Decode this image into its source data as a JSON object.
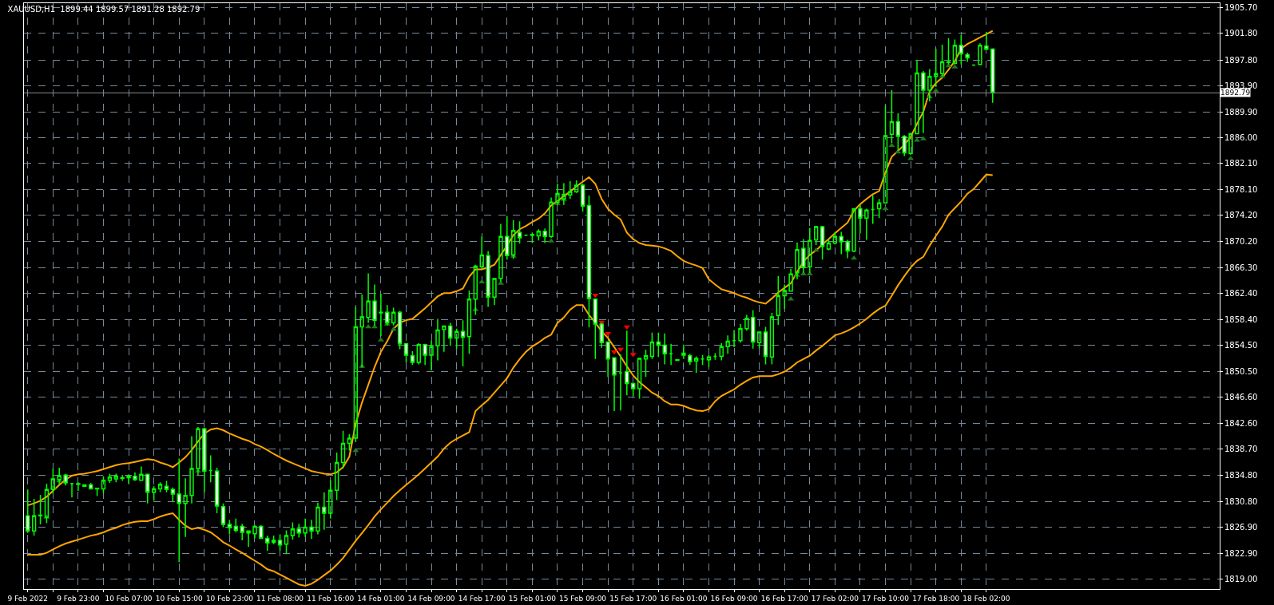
{
  "chart_data": {
    "type": "candlestick",
    "title": "XAUUSD,H1  1899.44 1899.57 1891.28 1892.79",
    "categories": [
      "9 Feb 2022",
      null,
      null,
      null,
      null,
      null,
      null,
      null,
      "9 Feb 23:00",
      null,
      null,
      null,
      null,
      null,
      null,
      null,
      "10 Feb 07:00",
      null,
      null,
      null,
      null,
      null,
      null,
      null,
      "10 Feb 15:00",
      null,
      null,
      null,
      null,
      null,
      null,
      null,
      "10 Feb 23:00",
      null,
      null,
      null,
      null,
      null,
      null,
      null,
      "11 Feb 08:00",
      null,
      null,
      null,
      null,
      null,
      null,
      null,
      "11 Feb 16:00",
      null,
      null,
      null,
      null,
      null,
      null,
      null,
      "14 Feb 01:00",
      null,
      null,
      null,
      null,
      null,
      null,
      null,
      "14 Feb 09:00",
      null,
      null,
      null,
      null,
      null,
      null,
      null,
      "14 Feb 17:00",
      null,
      null,
      null,
      null,
      null,
      null,
      null,
      "15 Feb 01:00",
      null,
      null,
      null,
      null,
      null,
      null,
      null,
      "15 Feb 09:00",
      null,
      null,
      null,
      null,
      null,
      null,
      null,
      "15 Feb 17:00",
      null,
      null,
      null,
      null,
      null,
      null,
      null,
      "16 Feb 01:00",
      null,
      null,
      null,
      null,
      null,
      null,
      null,
      "16 Feb 09:00",
      null,
      null,
      null,
      null,
      null,
      null,
      null,
      "16 Feb 17:00",
      null,
      null,
      null,
      null,
      null,
      null,
      null,
      "17 Feb 02:00",
      null,
      null,
      null,
      null,
      null,
      null,
      null,
      "17 Feb 10:00",
      null,
      null,
      null,
      null,
      null,
      null,
      null,
      "17 Feb 18:00",
      null,
      null,
      null,
      null,
      null,
      null,
      null,
      "18 Feb 02:00",
      null
    ],
    "ohlc": [
      [
        1828.6,
        1832.6,
        1826.0,
        1826.3
      ],
      [
        1826.3,
        1831.2,
        1825.6,
        1828.6
      ],
      [
        1828.6,
        1831.8,
        1827.3,
        1828.7
      ],
      [
        1828.4,
        1833.5,
        1827.5,
        1832.6
      ],
      [
        1832.6,
        1835.8,
        1832.0,
        1834.2
      ],
      [
        1834.1,
        1835.9,
        1833.3,
        1834.7
      ],
      [
        1834.8,
        1835.0,
        1833.2,
        1833.6
      ],
      [
        1833.5,
        1833.6,
        1831.4,
        1833.5
      ],
      [
        1833.4,
        1833.7,
        1832.4,
        1833.5
      ],
      [
        1833.3,
        1833.4,
        1833.0,
        1833.1
      ],
      [
        1833.3,
        1833.6,
        1832.6,
        1832.7
      ],
      [
        1832.7,
        1832.8,
        1831.6,
        1832.8
      ],
      [
        1832.7,
        1834.6,
        1832.0,
        1834.0
      ],
      [
        1834.0,
        1835.0,
        1833.6,
        1834.5
      ],
      [
        1834.2,
        1835.0,
        1833.7,
        1834.6
      ],
      [
        1834.3,
        1834.8,
        1833.9,
        1834.4
      ],
      [
        1834.4,
        1834.9,
        1833.5,
        1834.6
      ],
      [
        1834.6,
        1835.2,
        1833.9,
        1834.1
      ],
      [
        1834.0,
        1836.1,
        1833.9,
        1834.9
      ],
      [
        1834.9,
        1835.0,
        1830.5,
        1832.2
      ],
      [
        1832.2,
        1833.1,
        1830.9,
        1832.7
      ],
      [
        1832.7,
        1833.7,
        1832.2,
        1833.4
      ],
      [
        1833.1,
        1833.9,
        1832.2,
        1832.6
      ],
      [
        1832.6,
        1832.9,
        1830.7,
        1831.9
      ],
      [
        1831.9,
        1837.3,
        1821.6,
        1830.5
      ],
      [
        1830.5,
        1834.3,
        1825.4,
        1831.7
      ],
      [
        1831.7,
        1840.7,
        1830.5,
        1835.8
      ],
      [
        1835.8,
        1842.1,
        1834.8,
        1841.8
      ],
      [
        1841.8,
        1842.0,
        1832.2,
        1835.4
      ],
      [
        1835.5,
        1837.8,
        1833.7,
        1835.5
      ],
      [
        1835.4,
        1835.9,
        1829.0,
        1830.1
      ],
      [
        1830.0,
        1830.5,
        1826.9,
        1827.3
      ],
      [
        1827.3,
        1828.0,
        1825.8,
        1826.8
      ],
      [
        1827.0,
        1828.2,
        1826.1,
        1826.4
      ],
      [
        1827.0,
        1827.4,
        1824.9,
        1826.1
      ],
      [
        1826.3,
        1826.3,
        1823.9,
        1826.0
      ],
      [
        1825.9,
        1827.2,
        1825.2,
        1827.0
      ],
      [
        1827.0,
        1827.2,
        1825.1,
        1825.2
      ],
      [
        1825.2,
        1825.6,
        1823.3,
        1824.5
      ],
      [
        1824.6,
        1825.6,
        1824.3,
        1824.9
      ],
      [
        1824.9,
        1825.8,
        1823.3,
        1824.2
      ],
      [
        1824.3,
        1826.4,
        1822.8,
        1825.6
      ],
      [
        1825.6,
        1827.6,
        1825.0,
        1826.6
      ],
      [
        1826.6,
        1827.4,
        1825.3,
        1826.0
      ],
      [
        1826.0,
        1828.2,
        1825.4,
        1826.9
      ],
      [
        1826.9,
        1828.0,
        1825.1,
        1826.3
      ],
      [
        1826.3,
        1830.6,
        1825.8,
        1829.9
      ],
      [
        1829.9,
        1832.2,
        1826.5,
        1829.0
      ],
      [
        1829.0,
        1834.0,
        1828.2,
        1832.5
      ],
      [
        1832.5,
        1838.2,
        1831.0,
        1836.7
      ],
      [
        1836.7,
        1841.5,
        1835.8,
        1839.6
      ],
      [
        1839.6,
        1841.0,
        1838.5,
        1840.4
      ],
      [
        1840.4,
        1860.3,
        1839.8,
        1857.3
      ],
      [
        1857.3,
        1862.2,
        1851.1,
        1858.8
      ],
      [
        1858.7,
        1865.4,
        1857.9,
        1861.2
      ],
      [
        1861.2,
        1863.7,
        1857.5,
        1858.3
      ],
      [
        1859.5,
        1862.3,
        1855.9,
        1859.4
      ],
      [
        1859.5,
        1860.6,
        1857.5,
        1857.9
      ],
      [
        1857.9,
        1860.2,
        1857.5,
        1859.5
      ],
      [
        1859.5,
        1859.7,
        1853.9,
        1854.7
      ],
      [
        1854.7,
        1854.7,
        1851.9,
        1853.0
      ],
      [
        1852.9,
        1853.6,
        1851.5,
        1851.9
      ],
      [
        1851.9,
        1854.8,
        1851.6,
        1854.6
      ],
      [
        1854.6,
        1854.7,
        1851.5,
        1853.0
      ],
      [
        1853.0,
        1855.2,
        1850.7,
        1854.3
      ],
      [
        1854.4,
        1858.5,
        1852.2,
        1856.8
      ],
      [
        1856.9,
        1857.5,
        1853.5,
        1857.4
      ],
      [
        1857.4,
        1857.9,
        1854.4,
        1855.6
      ],
      [
        1855.6,
        1857.0,
        1854.0,
        1856.6
      ],
      [
        1856.6,
        1858.3,
        1851.3,
        1855.7
      ],
      [
        1855.8,
        1862.8,
        1853.2,
        1861.5
      ],
      [
        1861.5,
        1866.7,
        1859.1,
        1866.5
      ],
      [
        1866.4,
        1871.0,
        1866.1,
        1868.2
      ],
      [
        1868.1,
        1868.8,
        1860.3,
        1861.8
      ],
      [
        1861.8,
        1864.6,
        1860.6,
        1864.6
      ],
      [
        1864.6,
        1872.9,
        1864.1,
        1871.0
      ],
      [
        1871.0,
        1874.1,
        1867.5,
        1868.1
      ],
      [
        1868.2,
        1873.5,
        1867.6,
        1871.9
      ],
      [
        1871.6,
        1873.3,
        1869.9,
        1870.8
      ],
      [
        1871.2,
        1871.3,
        1871.1,
        1871.2
      ],
      [
        1871.2,
        1871.6,
        1870.0,
        1871.3
      ],
      [
        1871.1,
        1872.1,
        1870.4,
        1871.8
      ],
      [
        1871.8,
        1872.2,
        1870.0,
        1871.0
      ],
      [
        1871.0,
        1876.9,
        1870.8,
        1876.2
      ],
      [
        1876.2,
        1879.0,
        1875.8,
        1877.5
      ],
      [
        1876.7,
        1879.1,
        1875.8,
        1877.4
      ],
      [
        1877.3,
        1879.4,
        1876.7,
        1877.8
      ],
      [
        1877.8,
        1879.5,
        1877.6,
        1878.8
      ],
      [
        1878.8,
        1879.0,
        1874.8,
        1875.6
      ],
      [
        1875.7,
        1877.2,
        1857.2,
        1861.6
      ],
      [
        1861.5,
        1861.5,
        1852.4,
        1857.7
      ],
      [
        1857.7,
        1857.9,
        1854.1,
        1854.9
      ],
      [
        1855.0,
        1855.0,
        1849.7,
        1852.4
      ],
      [
        1852.6,
        1852.6,
        1844.5,
        1850.0
      ],
      [
        1850.3,
        1853.1,
        1844.6,
        1850.3
      ],
      [
        1850.5,
        1856.7,
        1846.9,
        1848.7
      ],
      [
        1848.7,
        1848.7,
        1846.8,
        1847.9
      ],
      [
        1847.9,
        1852.6,
        1846.4,
        1852.5
      ],
      [
        1852.4,
        1853.8,
        1849.7,
        1852.9
      ],
      [
        1852.8,
        1856.4,
        1852.4,
        1855.0
      ],
      [
        1855.0,
        1856.4,
        1852.7,
        1854.5
      ],
      [
        1854.5,
        1856.3,
        1851.6,
        1853.2
      ],
      [
        1853.2,
        1854.7,
        1851.5,
        1853.2
      ],
      [
        1852.3,
        1852.3,
        1852.2,
        1852.2
      ],
      [
        1853.3,
        1854.6,
        1852.4,
        1853.0
      ],
      [
        1852.9,
        1853.2,
        1851.5,
        1852.0
      ],
      [
        1852.1,
        1852.8,
        1850.3,
        1852.5
      ],
      [
        1852.4,
        1853.0,
        1851.5,
        1852.4
      ],
      [
        1852.3,
        1853.0,
        1851.2,
        1852.7
      ],
      [
        1852.8,
        1853.3,
        1852.3,
        1852.8
      ],
      [
        1852.8,
        1854.8,
        1852.2,
        1854.3
      ],
      [
        1854.3,
        1856.0,
        1853.2,
        1855.1
      ],
      [
        1855.2,
        1856.8,
        1854.2,
        1855.2
      ],
      [
        1855.2,
        1857.7,
        1854.9,
        1857.0
      ],
      [
        1857.0,
        1859.1,
        1856.7,
        1858.6
      ],
      [
        1858.7,
        1859.8,
        1854.0,
        1855.0
      ],
      [
        1854.9,
        1856.6,
        1854.0,
        1856.5
      ],
      [
        1856.5,
        1857.3,
        1851.6,
        1852.8
      ],
      [
        1852.7,
        1859.4,
        1851.6,
        1858.8
      ],
      [
        1859.0,
        1865.0,
        1857.6,
        1862.0
      ],
      [
        1862.0,
        1863.7,
        1860.0,
        1862.8
      ],
      [
        1862.7,
        1866.1,
        1862.7,
        1865.3
      ],
      [
        1865.5,
        1870.1,
        1864.5,
        1869.0
      ],
      [
        1869.2,
        1870.6,
        1865.5,
        1866.3
      ],
      [
        1866.4,
        1872.3,
        1865.5,
        1870.4
      ],
      [
        1870.5,
        1872.6,
        1869.7,
        1872.5
      ],
      [
        1872.5,
        1872.6,
        1867.5,
        1869.5
      ],
      [
        1869.1,
        1870.6,
        1868.9,
        1870.0
      ],
      [
        1870.0,
        1871.7,
        1869.8,
        1871.0
      ],
      [
        1871.0,
        1871.7,
        1868.3,
        1870.2
      ],
      [
        1870.2,
        1870.5,
        1867.7,
        1868.8
      ],
      [
        1868.8,
        1875.3,
        1868.6,
        1875.2
      ],
      [
        1875.2,
        1875.8,
        1871.5,
        1873.8
      ],
      [
        1873.8,
        1875.2,
        1870.5,
        1875.0
      ],
      [
        1875.1,
        1877.2,
        1872.9,
        1875.1
      ],
      [
        1875.2,
        1876.7,
        1873.8,
        1876.1
      ],
      [
        1876.1,
        1890.9,
        1876.0,
        1886.3
      ],
      [
        1886.5,
        1893.2,
        1885.2,
        1888.4
      ],
      [
        1888.4,
        1889.7,
        1884.0,
        1886.2
      ],
      [
        1886.2,
        1886.4,
        1883.2,
        1883.7
      ],
      [
        1883.6,
        1886.7,
        1883.4,
        1886.6
      ],
      [
        1886.6,
        1897.7,
        1886.6,
        1895.8
      ],
      [
        1895.8,
        1896.1,
        1886.7,
        1893.2
      ],
      [
        1893.2,
        1896.4,
        1891.5,
        1895.3
      ],
      [
        1895.3,
        1899.5,
        1893.7,
        1895.7
      ],
      [
        1895.7,
        1900.1,
        1895.3,
        1897.5
      ],
      [
        1897.4,
        1901.1,
        1897.1,
        1897.5
      ],
      [
        1897.3,
        1900.9,
        1897.1,
        1900.0
      ],
      [
        1900.0,
        1901.6,
        1897.1,
        1898.7
      ],
      [
        1898.6,
        1898.9,
        1897.5,
        1898.1
      ],
      [
        1897.0,
        1897.0,
        1896.9,
        1897.0
      ],
      [
        1897.1,
        1900.3,
        1897.1,
        1900.0
      ],
      [
        1899.9,
        1902.0,
        1899.3,
        1899.4
      ],
      [
        1899.44,
        1899.57,
        1891.28,
        1892.79
      ]
    ],
    "series": [
      {
        "type": "line",
        "color": "#ffa500",
        "values": [
          1830.2,
          1830.5,
          1830.9,
          1831.5,
          1832.4,
          1833.3,
          1834.1,
          1834.7,
          1834.9,
          1835.0,
          1835.2,
          1835.4,
          1835.7,
          1836.0,
          1836.3,
          1836.5,
          1836.6,
          1836.8,
          1837.0,
          1837.2,
          1837.1,
          1836.7,
          1836.4,
          1836.0,
          1836.7,
          1837.5,
          1838.6,
          1839.9,
          1841.1,
          1841.7,
          1841.9,
          1841.6,
          1841.1,
          1840.7,
          1840.3,
          1840.0,
          1839.5,
          1839.1,
          1838.6,
          1838.0,
          1837.5,
          1837.0,
          1836.6,
          1836.2,
          1835.8,
          1835.4,
          1835.2,
          1835.0,
          1834.9,
          1835.2,
          1836.0,
          1837.6,
          1842.6,
          1845.8,
          1848.5,
          1851.2,
          1853.5,
          1855.1,
          1857.0,
          1857.9,
          1858.3,
          1858.5,
          1859.3,
          1860.1,
          1861.0,
          1861.9,
          1862.4,
          1862.4,
          1862.7,
          1863.1,
          1864.9,
          1866.0,
          1866.0,
          1866.3,
          1866.7,
          1868.2,
          1869.6,
          1871.2,
          1872.1,
          1872.6,
          1873.2,
          1873.7,
          1874.5,
          1875.7,
          1876.4,
          1877.1,
          1877.8,
          1878.6,
          1879.3,
          1880.0,
          1879.0,
          1876.7,
          1875.2,
          1874.3,
          1873.6,
          1871.6,
          1870.6,
          1870.0,
          1869.7,
          1869.6,
          1869.5,
          1869.2,
          1868.8,
          1868.0,
          1867.3,
          1866.9,
          1866.6,
          1866.2,
          1864.5,
          1863.7,
          1863.0,
          1862.7,
          1862.4,
          1862.0,
          1861.7,
          1861.3,
          1861.0,
          1860.8,
          1861.6,
          1862.5,
          1863.2,
          1863.9,
          1865.6,
          1867.2,
          1868.2,
          1868.9,
          1869.8,
          1870.6,
          1871.5,
          1872.3,
          1873.1,
          1874.9,
          1875.9,
          1876.7,
          1877.4,
          1877.9,
          1880.7,
          1883.1,
          1884.0,
          1884.9,
          1886.1,
          1888.1,
          1889.9,
          1893.0,
          1894.3,
          1895.1,
          1896.3,
          1897.6,
          1899.5,
          1900.2,
          1900.7,
          1901.2,
          1901.7,
          1902.2
        ]
      },
      {
        "type": "line",
        "color": "#ffa500",
        "values": [
          1822.7,
          1822.7,
          1822.7,
          1823.0,
          1823.5,
          1824.0,
          1824.4,
          1824.7,
          1825.0,
          1825.3,
          1825.6,
          1825.8,
          1826.1,
          1826.5,
          1826.8,
          1827.2,
          1827.5,
          1827.7,
          1827.8,
          1827.8,
          1828.1,
          1828.5,
          1828.8,
          1829.0,
          1828.0,
          1827.1,
          1826.6,
          1826.8,
          1826.5,
          1826.1,
          1825.4,
          1824.6,
          1824.1,
          1823.5,
          1823.0,
          1822.4,
          1821.8,
          1821.2,
          1820.5,
          1820.2,
          1819.7,
          1819.2,
          1818.7,
          1818.2,
          1818.0,
          1818.3,
          1818.9,
          1819.6,
          1820.3,
          1821.2,
          1822.2,
          1823.5,
          1824.8,
          1826.0,
          1827.2,
          1828.5,
          1829.6,
          1830.6,
          1831.6,
          1832.5,
          1833.3,
          1834.1,
          1834.9,
          1835.8,
          1836.7,
          1837.6,
          1838.8,
          1839.7,
          1840.3,
          1840.8,
          1841.3,
          1844.5,
          1845.4,
          1846.2,
          1847.3,
          1848.4,
          1849.5,
          1851.1,
          1852.4,
          1853.5,
          1854.3,
          1854.9,
          1855.6,
          1856.1,
          1857.9,
          1858.7,
          1859.9,
          1860.6,
          1860.6,
          1859.1,
          1857.9,
          1856.6,
          1855.6,
          1854.2,
          1852.8,
          1851.3,
          1849.9,
          1848.9,
          1848.1,
          1847.3,
          1846.8,
          1846.0,
          1845.5,
          1845.5,
          1845.3,
          1844.9,
          1844.6,
          1844.5,
          1844.8,
          1846.0,
          1846.8,
          1847.3,
          1847.8,
          1848.5,
          1849.1,
          1849.6,
          1849.8,
          1849.8,
          1849.8,
          1850.1,
          1850.5,
          1851.1,
          1851.9,
          1852.4,
          1852.9,
          1853.7,
          1854.4,
          1855.2,
          1856.0,
          1856.3,
          1856.7,
          1857.2,
          1857.8,
          1858.5,
          1859.3,
          1860.0,
          1860.5,
          1862.0,
          1863.6,
          1865.0,
          1866.3,
          1867.3,
          1867.9,
          1869.6,
          1871.1,
          1872.5,
          1874.3,
          1875.3,
          1876.3,
          1877.5,
          1878.2,
          1879.3,
          1880.4,
          1880.3
        ]
      },
      {
        "type": "scatter",
        "marker": "triangle",
        "color": "#1f7a1f",
        "values": [
          null,
          null,
          null,
          1828.4,
          1832.9,
          1833.9,
          null,
          null,
          null,
          null,
          null,
          null,
          null,
          null,
          null,
          null,
          null,
          null,
          null,
          null,
          null,
          null,
          null,
          null,
          null,
          null,
          null,
          1835.4,
          null,
          null,
          null,
          null,
          null,
          null,
          null,
          null,
          null,
          null,
          null,
          null,
          null,
          null,
          null,
          null,
          null,
          null,
          null,
          null,
          null,
          null,
          null,
          null,
          1838.5,
          1851.3,
          1857.3,
          1857.3,
          1855.3,
          1857.7,
          1856.9,
          null,
          null,
          null,
          null,
          null,
          null,
          null,
          null,
          null,
          null,
          null,
          null,
          1859.9,
          1864.1,
          null,
          null,
          1863.9,
          null,
          1868.0,
          null,
          null,
          null,
          null,
          null,
          1870.3,
          1876.0,
          1876.6,
          null,
          null,
          null,
          null,
          null,
          null,
          null,
          null,
          null,
          null,
          null,
          null,
          null,
          null,
          null,
          null,
          null,
          null,
          null,
          null,
          null,
          null,
          null,
          null,
          null,
          null,
          null,
          null,
          null,
          null,
          null,
          null,
          null,
          null,
          null,
          1861.5,
          1865.1,
          1865.3,
          1865.3,
          1868.9,
          null,
          null,
          null,
          null,
          null,
          1867.7,
          null,
          null,
          null,
          null,
          1875.2,
          1884.8,
          1883.8,
          null,
          1882.8,
          1885.6,
          1885.8,
          1892.2,
          1893.1,
          1895.3,
          1896.9,
          1896.7,
          null,
          null,
          null,
          null,
          null,
          null
        ]
      },
      {
        "type": "scatter",
        "marker": "triangle-down",
        "color": "#ff0000",
        "values": [
          null,
          null,
          null,
          null,
          null,
          null,
          null,
          null,
          null,
          null,
          null,
          null,
          null,
          null,
          null,
          null,
          null,
          null,
          null,
          null,
          null,
          null,
          null,
          null,
          null,
          null,
          null,
          null,
          null,
          null,
          null,
          null,
          null,
          null,
          null,
          null,
          null,
          null,
          null,
          null,
          null,
          null,
          null,
          null,
          null,
          null,
          null,
          null,
          null,
          null,
          null,
          null,
          null,
          null,
          null,
          null,
          null,
          null,
          null,
          null,
          null,
          null,
          null,
          null,
          null,
          null,
          null,
          null,
          null,
          null,
          null,
          null,
          null,
          null,
          null,
          null,
          null,
          null,
          null,
          null,
          null,
          null,
          null,
          null,
          null,
          null,
          null,
          null,
          null,
          null,
          1862.1,
          1858.0,
          1856.3,
          1853.5,
          1853.9,
          1857.3,
          1853.1,
          null,
          null,
          null,
          null,
          null,
          null,
          null,
          null,
          null,
          null,
          null,
          null,
          null,
          null,
          null,
          null,
          null,
          null,
          null,
          null,
          null,
          null,
          null,
          null,
          null,
          null,
          null,
          null,
          null,
          null,
          null,
          null,
          null,
          null,
          null,
          null,
          null,
          null,
          null,
          null,
          null,
          null,
          null,
          null,
          null,
          null,
          null,
          null,
          null,
          null,
          null,
          null,
          null,
          null,
          null,
          null,
          null
        ]
      }
    ],
    "ylim": [
      1817.5,
      1906.4
    ],
    "yticks": [
      {
        "value": 1819.0,
        "label": "1819.00"
      },
      {
        "value": 1822.9,
        "label": "1822.90"
      },
      {
        "value": 1826.9,
        "label": "1826.90"
      },
      {
        "value": 1830.8,
        "label": "1830.80"
      },
      {
        "value": 1834.8,
        "label": "1834.80"
      },
      {
        "value": 1838.7,
        "label": "1838.70"
      },
      {
        "value": 1842.6,
        "label": "1842.60"
      },
      {
        "value": 1846.6,
        "label": "1846.60"
      },
      {
        "value": 1850.5,
        "label": "1850.50"
      },
      {
        "value": 1854.5,
        "label": "1854.50"
      },
      {
        "value": 1858.4,
        "label": "1858.40"
      },
      {
        "value": 1862.4,
        "label": "1862.40"
      },
      {
        "value": 1866.3,
        "label": "1866.30"
      },
      {
        "value": 1870.2,
        "label": "1870.20"
      },
      {
        "value": 1874.2,
        "label": "1874.20"
      },
      {
        "value": 1878.1,
        "label": "1878.10"
      },
      {
        "value": 1882.1,
        "label": "1882.10"
      },
      {
        "value": 1886.0,
        "label": "1886.00"
      },
      {
        "value": 1889.9,
        "label": "1889.90"
      },
      {
        "value": 1893.9,
        "label": "1893.90"
      },
      {
        "value": 1897.8,
        "label": "1897.80"
      },
      {
        "value": 1901.8,
        "label": "1901.80"
      },
      {
        "value": 1905.7,
        "label": "1905.70"
      }
    ],
    "ref_lines": [
      {
        "axis": "y",
        "value": 1892.79,
        "label": "1892.79",
        "color": "#8c8c8c"
      }
    ],
    "grid": true
  }
}
